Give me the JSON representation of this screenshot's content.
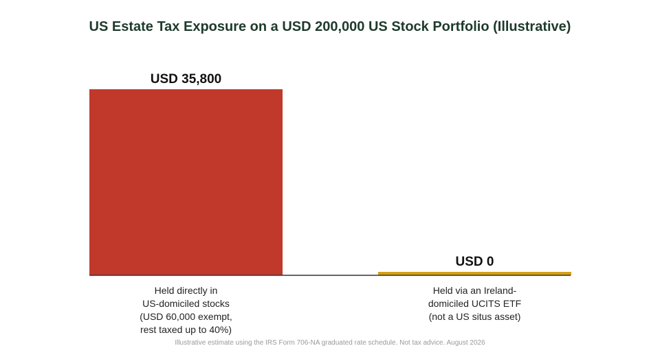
{
  "chart_data": {
    "type": "bar",
    "title": "US Estate Tax Exposure on a USD 200,000 US Stock Portfolio (Illustrative)",
    "xlabel": "",
    "ylabel": "",
    "categories": [
      "Held directly in\nUS-domiciled stocks\n(USD 60,000 exempt,\nrest taxed up to 40%)",
      "Held via an Ireland-\ndomiciled UCITS ETF\n(not a US situs asset)"
    ],
    "values": [
      35800,
      0
    ],
    "data_labels": [
      "USD 35,800",
      "USD 0"
    ],
    "colors": [
      "#c0392b",
      "#d4a017"
    ],
    "ylim": [
      0,
      35800
    ],
    "grid": false,
    "legend": "none"
  },
  "footnote": "Illustrative estimate using the IRS Form 706-NA graduated rate schedule. Not tax advice. August 2026"
}
